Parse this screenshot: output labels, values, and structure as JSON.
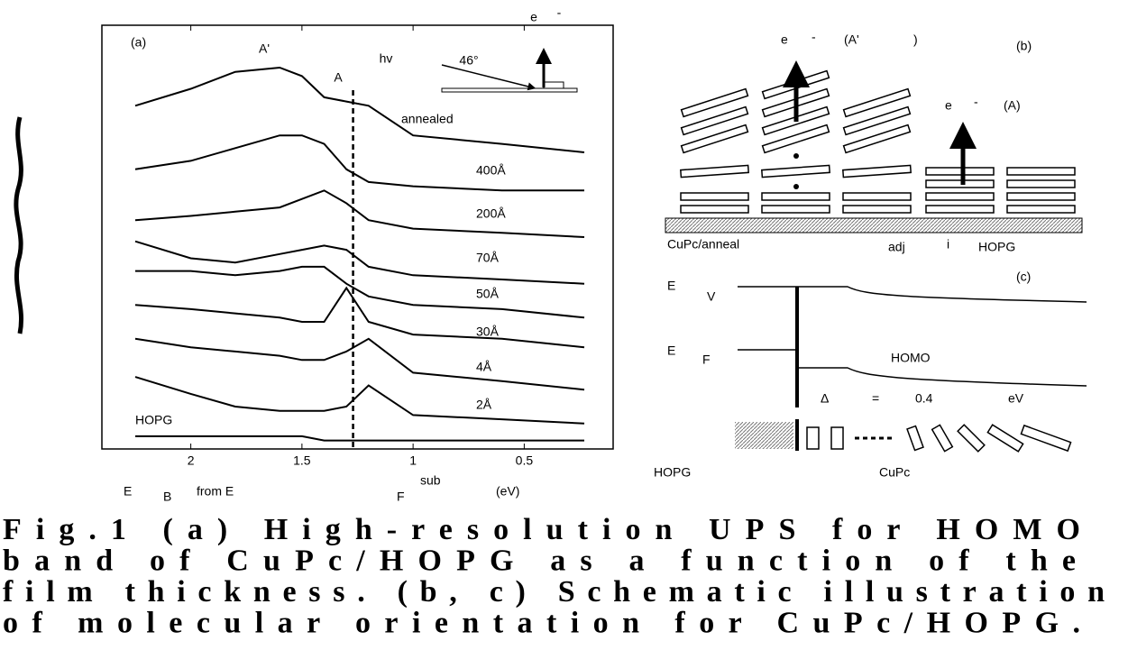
{
  "chart_data": {
    "type": "line",
    "panel_label": "(a)",
    "annotations": [
      "A'",
      "A",
      "hv",
      "46°",
      "e",
      "-"
    ],
    "x": [
      2.25,
      2.0,
      1.8,
      1.6,
      1.5,
      1.4,
      1.3,
      1.2,
      1.0,
      0.6,
      0.23
    ],
    "xlim": [
      2.4,
      0.1
    ],
    "xticks": [
      2,
      1.5,
      1,
      0.5
    ],
    "ylim": [
      0,
      100
    ],
    "reference_x": 1.27,
    "xlabel": [
      "E",
      "B",
      "from E",
      "F",
      "sub",
      "(eV)"
    ],
    "series": [
      {
        "name": "annealed",
        "color": "#000000",
        "values": [
          81,
          85,
          89,
          90,
          88,
          83,
          82,
          81,
          74,
          72,
          70
        ]
      },
      {
        "name": "400Å",
        "color": "#000000",
        "values": [
          66,
          68,
          71,
          74,
          74,
          72,
          66,
          63,
          62,
          61,
          61
        ]
      },
      {
        "name": "200Å",
        "color": "#000000",
        "values": [
          54,
          55,
          56,
          57,
          59,
          61,
          58,
          54,
          52,
          51,
          50
        ]
      },
      {
        "name": "70Å",
        "color": "#000000",
        "values": [
          49,
          45,
          44,
          46,
          47,
          48,
          47,
          43,
          41,
          40,
          39
        ]
      },
      {
        "name": "50Å",
        "color": "#000000",
        "values": [
          42,
          42,
          41,
          42,
          43,
          43,
          39,
          36,
          34,
          33,
          31
        ]
      },
      {
        "name": "30Å",
        "color": "#000000",
        "values": [
          34,
          33,
          32,
          31,
          30,
          30,
          38,
          30,
          27,
          26,
          24
        ]
      },
      {
        "name": "4Å",
        "color": "#000000",
        "values": [
          26,
          24,
          23,
          22,
          21,
          21,
          23,
          26,
          18,
          16,
          14
        ]
      },
      {
        "name": "2Å",
        "color": "#000000",
        "values": [
          17,
          13,
          10,
          9,
          9,
          9,
          10,
          15,
          8,
          7,
          6
        ]
      },
      {
        "name": "HOPG",
        "color": "#000000",
        "values": [
          3,
          3,
          3,
          3,
          3,
          2,
          2,
          2,
          2,
          2,
          2
        ]
      }
    ]
  },
  "panel_b": {
    "label": "(b)",
    "texts": [
      "e",
      "-",
      "(A'",
      ")",
      "e",
      "-",
      "(A)",
      "CuPc/anneal",
      "adj",
      "i",
      "HOPG"
    ]
  },
  "panel_c": {
    "label": "(c)",
    "texts": [
      "E",
      "V",
      "E",
      "F",
      "HOMO",
      "Δ",
      "=",
      "0.4",
      "eV",
      "HOPG",
      "CuPc"
    ]
  },
  "caption": [
    "Fig.1 (a) High-resolution UPS for HOMO",
    "band of CuPc/HOPG as a function of the",
    "film thickness. (b, c) Schematic illustration",
    "of molecular orientation for CuPc/HOPG."
  ]
}
